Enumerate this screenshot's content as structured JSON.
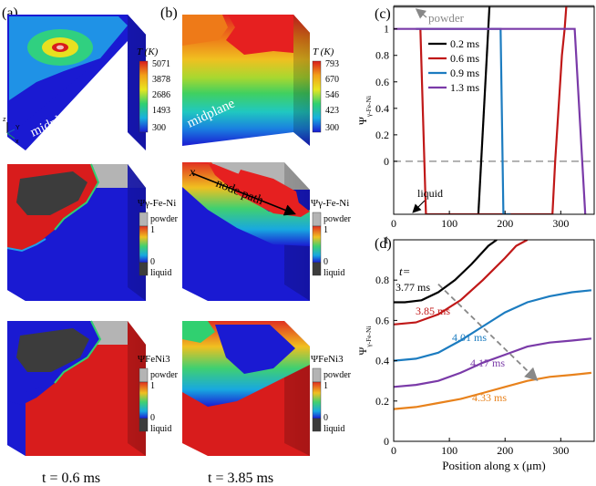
{
  "panels": {
    "a": {
      "label": "(a)",
      "time_caption": "t = 0.6 ms"
    },
    "b": {
      "label": "(b)",
      "time_caption": "t = 3.85 ms"
    },
    "c": {
      "label": "(c)"
    },
    "d": {
      "label": "(d)"
    }
  },
  "block_labels": {
    "midplane": "midplane",
    "node_path": "node path",
    "x_axis_marker": "x",
    "triad": {
      "z": "z",
      "y": "Y",
      "x": "x"
    }
  },
  "colorbars": {
    "temp_a": {
      "title": "T (K)",
      "ticks": [
        "5071",
        "3878",
        "2686",
        "1493",
        "300"
      ]
    },
    "temp_b": {
      "title": "T (K)",
      "ticks": [
        "793",
        "670",
        "546",
        "423",
        "300"
      ]
    },
    "phase_fe_ni": {
      "title": "Ψγ-Fe-Ni",
      "labels": [
        "powder",
        "1",
        "0",
        "liquid"
      ]
    },
    "phase_feni3": {
      "title": "ΨFeNi3",
      "labels": [
        "powder",
        "1",
        "0",
        "liquid"
      ]
    }
  },
  "colors": {
    "red": "#d81c1c",
    "orange": "#e06a10",
    "blue": "#1a1ad2",
    "powder": "#b4b4b4",
    "liquid": "#3c3c3c",
    "series_black": "#000000",
    "series_red": "#c01818",
    "series_blue": "#1c7cc0",
    "series_purple": "#7a3aa8",
    "series_orange": "#e8821c"
  },
  "chart_data": [
    {
      "id": "c",
      "type": "line",
      "title": "",
      "xlabel": "",
      "ylabel": "Ψγ-Fe-Ni",
      "xlim": [
        0,
        360
      ],
      "ylim": [
        -0.4,
        1.17
      ],
      "xticks": [
        0,
        100,
        200,
        300
      ],
      "yticks": [
        0,
        0.2,
        0.4,
        0.6,
        0.8,
        1
      ],
      "ytick_labels": [
        "0",
        "0.2",
        "0.4",
        "0.6",
        "0.8",
        "1"
      ],
      "reference_lines": [
        {
          "name": "powder",
          "y": 1.17,
          "color": "#999999",
          "label": "powder"
        },
        {
          "name": "liquid",
          "y": 0,
          "color": "#999999",
          "dashed": true,
          "label": "liquid"
        }
      ],
      "series": [
        {
          "name": "0.2 ms",
          "color": "#000000",
          "x": [
            152,
            172
          ],
          "y": [
            -0.4,
            1.17
          ]
        },
        {
          "name": "0.6 ms",
          "color": "#c01818",
          "x": [
            48,
            58,
            285,
            290,
            302,
            307,
            310
          ],
          "y": [
            1.0,
            -0.4,
            -0.4,
            0.0,
            0.8,
            1.0,
            1.17
          ]
        },
        {
          "name": "0.9 ms",
          "color": "#1c7cc0",
          "x": [
            40,
            192,
            197,
            210
          ],
          "y": [
            1.0,
            1.0,
            -0.4,
            -0.4
          ]
        },
        {
          "name": "1.3 ms",
          "color": "#7a3aa8",
          "x": [
            0,
            325,
            344
          ],
          "y": [
            1.0,
            1.0,
            -0.4
          ]
        }
      ]
    },
    {
      "id": "d",
      "type": "line",
      "title": "",
      "xlabel": "Position along x (μm)",
      "ylabel": "Ψγ-Fe-Ni",
      "xlim": [
        0,
        360
      ],
      "ylim": [
        0,
        1
      ],
      "xticks": [
        0,
        100,
        200,
        300
      ],
      "yticks": [
        0,
        0.2,
        0.4,
        0.6,
        0.8,
        1
      ],
      "ytick_labels": [
        "0",
        "0.2",
        "0.4",
        "0.6",
        "0.8",
        "1"
      ],
      "annotation": {
        "text": "t=",
        "arrow_from": [
          80,
          0.78
        ],
        "arrow_to": [
          255,
          0.31
        ]
      },
      "series": [
        {
          "name": "3.77 ms",
          "color": "#000000",
          "x": [
            0,
            20,
            50,
            80,
            110,
            140,
            170,
            185
          ],
          "y": [
            0.69,
            0.69,
            0.7,
            0.74,
            0.8,
            0.88,
            0.97,
            1.0
          ]
        },
        {
          "name": "3.85 ms",
          "color": "#c01818",
          "x": [
            0,
            40,
            80,
            120,
            160,
            200,
            220,
            240
          ],
          "y": [
            0.58,
            0.59,
            0.63,
            0.7,
            0.8,
            0.91,
            0.97,
            1.0
          ]
        },
        {
          "name": "4.01 ms",
          "color": "#1c7cc0",
          "x": [
            0,
            40,
            80,
            120,
            160,
            200,
            240,
            280,
            320,
            355
          ],
          "y": [
            0.4,
            0.41,
            0.44,
            0.5,
            0.57,
            0.64,
            0.69,
            0.72,
            0.74,
            0.75
          ]
        },
        {
          "name": "4.17 ms",
          "color": "#7a3aa8",
          "x": [
            0,
            40,
            80,
            120,
            160,
            200,
            240,
            280,
            320,
            355
          ],
          "y": [
            0.27,
            0.28,
            0.3,
            0.34,
            0.39,
            0.43,
            0.47,
            0.49,
            0.5,
            0.51
          ]
        },
        {
          "name": "4.33 ms",
          "color": "#e8821c",
          "x": [
            0,
            40,
            80,
            120,
            160,
            200,
            240,
            280,
            320,
            355
          ],
          "y": [
            0.16,
            0.17,
            0.19,
            0.21,
            0.24,
            0.27,
            0.3,
            0.32,
            0.33,
            0.34
          ]
        }
      ]
    }
  ]
}
